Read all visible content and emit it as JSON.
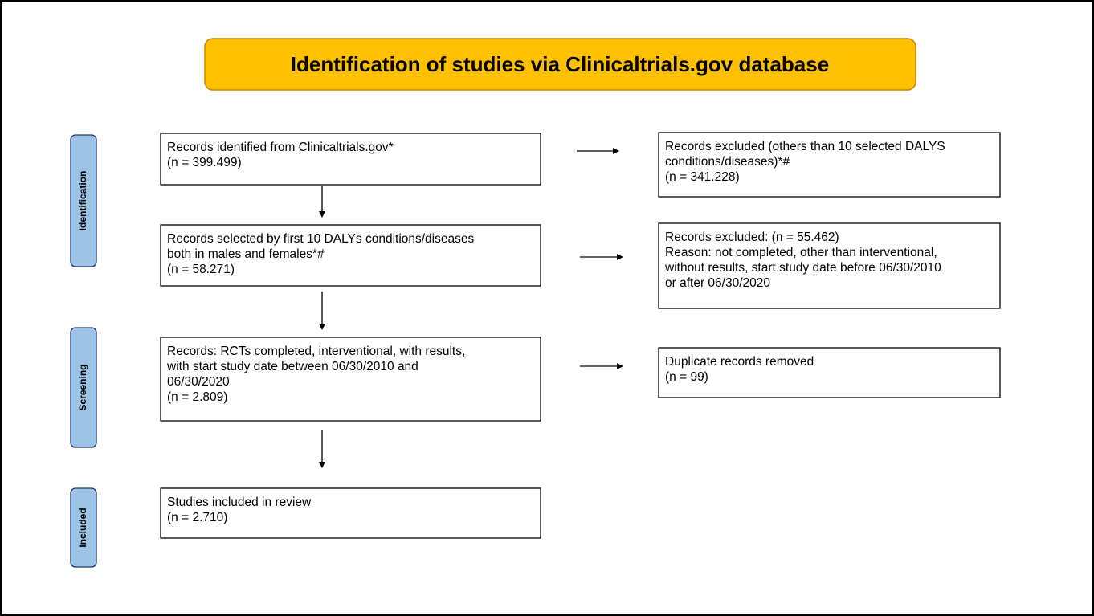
{
  "title": "Identification of studies via Clinicaltrials.gov database",
  "phases": [
    "Identification",
    "Screening",
    "Included"
  ],
  "boxes": [
    {
      "lines": [
        "Records identified from Clinicaltrials.gov*",
        "(n = 399.499)"
      ]
    },
    {
      "lines": [
        "Records selected by first 10 DALYs conditions/diseases",
        "both in males and females*#",
        "(n = 58.271)"
      ]
    },
    {
      "lines": [
        "Records: RCTs completed, interventional, with results,",
        "with start study date between 06/30/2010 and",
        "06/30/2020",
        "(n = 2.809)"
      ]
    },
    {
      "lines": [
        "Studies included in review",
        "(n = 2.710)"
      ]
    }
  ],
  "excluded": [
    {
      "lines": [
        "Records excluded (others than 10 selected DALYS",
        "conditions/diseases)*#",
        "(n = 341.228)"
      ]
    },
    {
      "lines": [
        "Records excluded: (n = 55.462)",
        "Reason: not completed, other than interventional,",
        "without results, start study date before 06/30/2010",
        "or after  06/30/2020"
      ]
    },
    {
      "lines": [
        "Duplicate records removed",
        "(n = 99)"
      ]
    }
  ]
}
